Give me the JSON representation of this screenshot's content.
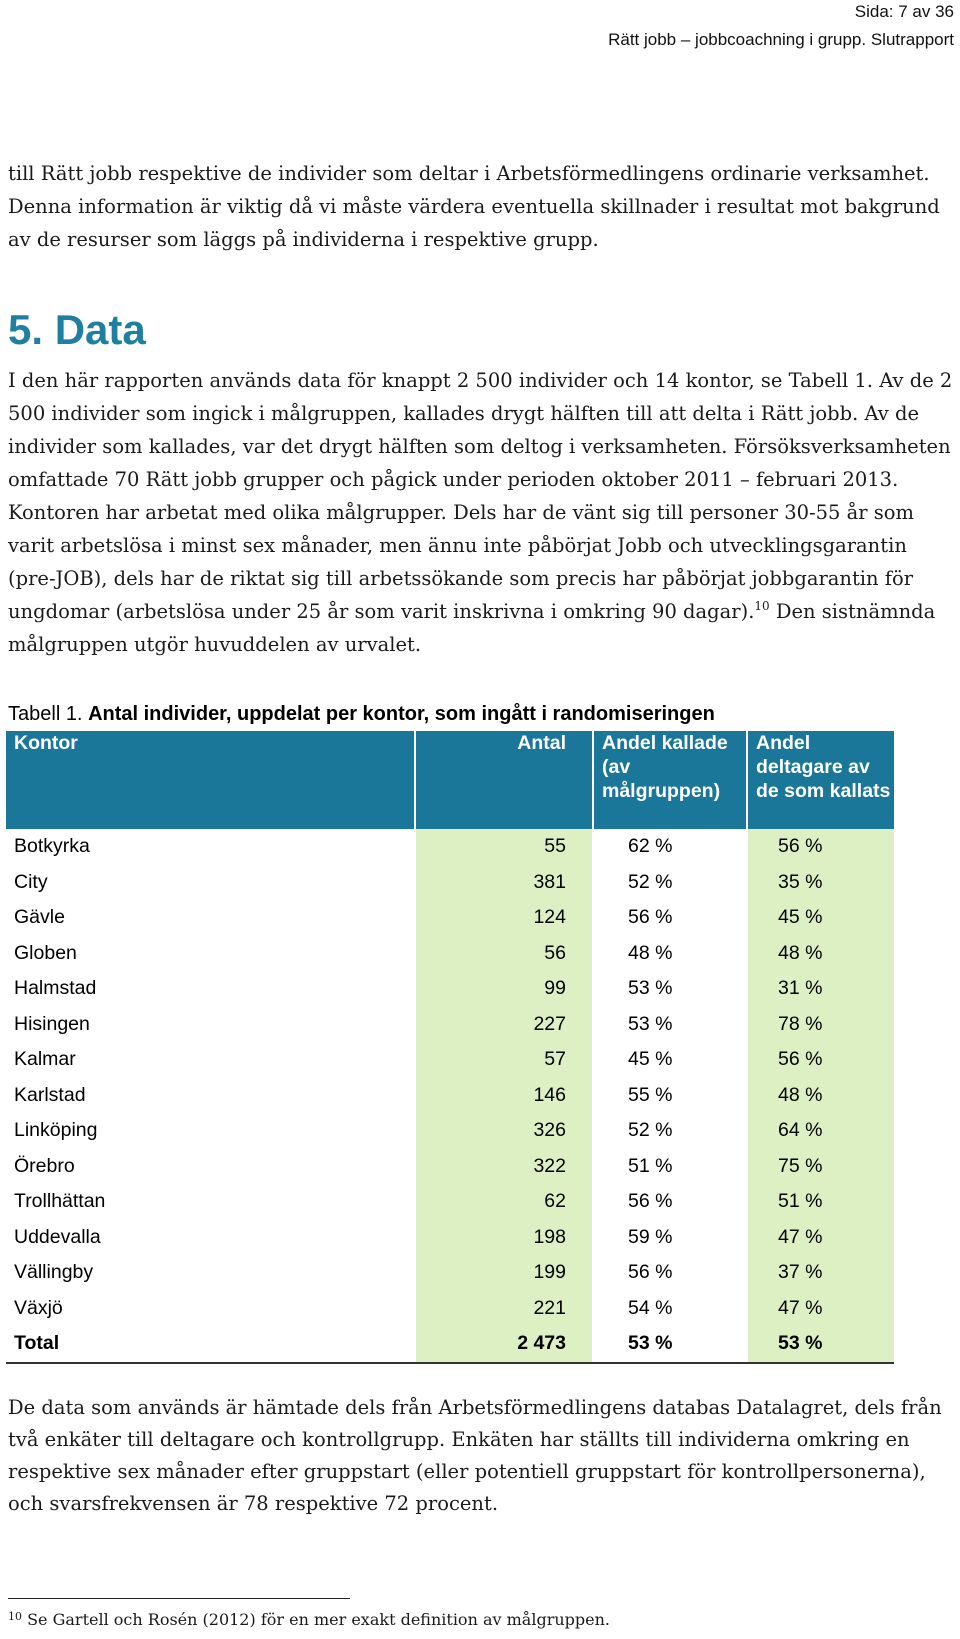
{
  "header": {
    "page": "Sida: 7 av 36",
    "report": "Rätt jobb – jobbcoachning i grupp. Slutrapport"
  },
  "intro_paragraph": "till Rätt jobb respektive de individer som deltar i Arbetsförmedlingens ordinarie verksamhet. Denna information är viktig då vi måste värdera eventuella skillnader i resultat mot bakgrund av de resurser som läggs på individerna i respektive grupp.",
  "section": {
    "heading": "5. Data",
    "paragraph_main": "I den här rapporten används data för knappt 2 500 individer och 14 kontor, se Tabell 1. Av de 2 500 individer som ingick i målgruppen, kallades drygt hälften till att delta i Rätt jobb. Av de individer som kallades, var det drygt hälften som deltog i verksamheten. Försöksverksamheten omfattade 70 Rätt jobb grupper och pågick under perioden oktober 2011 – februari 2013. Kontoren har arbetat med olika målgrupper. Dels har de vänt sig till personer 30-55 år som varit arbetslösa i minst sex månader, men ännu inte påbörjat Jobb och utvecklingsgarantin (pre-JOB), dels har de riktat sig till arbetssökande som precis har påbörjat jobbgarantin för ungdomar (arbetslösa under 25 år som varit inskrivna i omkring 90 dagar).",
    "footnote_ref": "10",
    "paragraph_tail": " Den sistnämnda målgruppen utgör huvuddelen av urvalet."
  },
  "table": {
    "caption_prefix": "Tabell 1. ",
    "caption_title": "Antal individer, uppdelat per kontor, som ingått i randomiseringen",
    "headers": {
      "kontor": "Kontor",
      "antal": "Antal",
      "andel_kallade": "Andel kallade (av målgruppen)",
      "andel_deltagare": "Andel deltagare av de som kallats"
    },
    "rows": [
      {
        "kontor": "Botkyrka",
        "antal": "55",
        "andel_kallade": "62 %",
        "andel_deltagare": "56 %"
      },
      {
        "kontor": "City",
        "antal": "381",
        "andel_kallade": "52 %",
        "andel_deltagare": "35 %"
      },
      {
        "kontor": "Gävle",
        "antal": "124",
        "andel_kallade": "56 %",
        "andel_deltagare": "45 %"
      },
      {
        "kontor": "Globen",
        "antal": "56",
        "andel_kallade": "48 %",
        "andel_deltagare": "48 %"
      },
      {
        "kontor": "Halmstad",
        "antal": "99",
        "andel_kallade": "53 %",
        "andel_deltagare": "31 %"
      },
      {
        "kontor": "Hisingen",
        "antal": "227",
        "andel_kallade": "53 %",
        "andel_deltagare": "78 %"
      },
      {
        "kontor": "Kalmar",
        "antal": "57",
        "andel_kallade": "45 %",
        "andel_deltagare": "56 %"
      },
      {
        "kontor": "Karlstad",
        "antal": "146",
        "andel_kallade": "55 %",
        "andel_deltagare": "48 %"
      },
      {
        "kontor": "Linköping",
        "antal": "326",
        "andel_kallade": "52 %",
        "andel_deltagare": "64 %"
      },
      {
        "kontor": "Örebro",
        "antal": "322",
        "andel_kallade": "51 %",
        "andel_deltagare": "75 %"
      },
      {
        "kontor": "Trollhättan",
        "antal": "62",
        "andel_kallade": "56 %",
        "andel_deltagare": "51 %"
      },
      {
        "kontor": "Uddevalla",
        "antal": "198",
        "andel_kallade": "59 %",
        "andel_deltagare": "47 %"
      },
      {
        "kontor": "Vällingby",
        "antal": "199",
        "andel_kallade": "56 %",
        "andel_deltagare": "37 %"
      },
      {
        "kontor": "Växjö",
        "antal": "221",
        "andel_kallade": "54 %",
        "andel_deltagare": "47 %"
      }
    ],
    "total": {
      "kontor": "Total",
      "antal": "2 473",
      "andel_kallade": "53 %",
      "andel_deltagare": "53 %"
    }
  },
  "closing_paragraph": "De data som används är hämtade dels från Arbetsförmedlingens databas Datalagret, dels från två enkäter till deltagare och kontrollgrupp. Enkäten har ställts till individerna omkring en respektive sex månader efter gruppstart (eller potentiell gruppstart för kontrollpersonerna), och svarsfrekvensen är 78 respektive 72 procent.",
  "footnote": {
    "number": "10",
    "text": " Se Gartell och Rosén (2012) för en mer exakt definition av målgruppen."
  }
}
